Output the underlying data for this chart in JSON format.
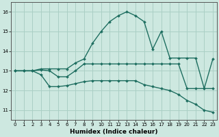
{
  "xlabel": "Humidex (Indice chaleur)",
  "xlim": [
    -0.5,
    23.5
  ],
  "ylim": [
    10.5,
    16.5
  ],
  "yticks": [
    11,
    12,
    13,
    14,
    15,
    16
  ],
  "xticks": [
    0,
    1,
    2,
    3,
    4,
    5,
    6,
    7,
    8,
    9,
    10,
    11,
    12,
    13,
    14,
    15,
    16,
    17,
    18,
    19,
    20,
    21,
    22,
    23
  ],
  "background_color": "#cde8e0",
  "grid_color": "#aacfc5",
  "line_color": "#1e6e60",
  "lines": [
    {
      "x": [
        0,
        1,
        2,
        3,
        4,
        5,
        6,
        7,
        8,
        9,
        10,
        11,
        12,
        13,
        14,
        15,
        16,
        17,
        18,
        19,
        20,
        21,
        22,
        23
      ],
      "y": [
        13.0,
        13.0,
        13.0,
        13.1,
        13.1,
        13.1,
        13.1,
        13.4,
        13.6,
        14.4,
        15.0,
        15.5,
        15.8,
        16.0,
        15.8,
        15.5,
        14.1,
        15.0,
        13.65,
        13.65,
        13.65,
        13.65,
        12.1,
        13.6
      ],
      "marker": "D",
      "markersize": 2.0,
      "linewidth": 1.0
    },
    {
      "x": [
        0,
        1,
        2,
        3,
        4,
        5,
        6,
        7,
        8,
        9,
        10,
        11,
        12,
        13,
        14,
        15,
        16,
        17,
        18,
        19,
        20,
        21,
        22,
        23
      ],
      "y": [
        13.0,
        13.0,
        13.0,
        13.05,
        13.0,
        12.7,
        12.7,
        13.0,
        13.35,
        13.35,
        13.35,
        13.35,
        13.35,
        13.35,
        13.35,
        13.35,
        13.35,
        13.35,
        13.35,
        13.35,
        12.1,
        12.1,
        12.1,
        12.1
      ],
      "marker": "D",
      "markersize": 2.0,
      "linewidth": 1.0
    },
    {
      "x": [
        0,
        1,
        2,
        3,
        4,
        5,
        6,
        7,
        8,
        9,
        10,
        11,
        12,
        13,
        14,
        15,
        16,
        17,
        18,
        19,
        20,
        21,
        22,
        23
      ],
      "y": [
        13.0,
        13.0,
        13.0,
        12.8,
        12.2,
        12.2,
        12.25,
        12.35,
        12.45,
        12.5,
        12.5,
        12.5,
        12.5,
        12.5,
        12.5,
        12.3,
        12.2,
        12.1,
        12.0,
        11.8,
        11.5,
        11.3,
        11.0,
        10.9
      ],
      "marker": "D",
      "markersize": 2.0,
      "linewidth": 1.0
    }
  ]
}
